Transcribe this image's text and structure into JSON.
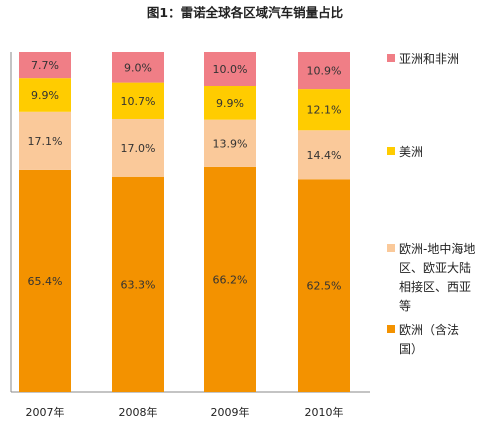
{
  "chart_data": {
    "type": "bar",
    "stacked": true,
    "title": "图1：雷诺全球各区域汽车销量占比",
    "categories": [
      "2007年",
      "2008年",
      "2009年",
      "2010年"
    ],
    "series": [
      {
        "name": "欧洲（含法国）",
        "color": "#F39200",
        "values": [
          65.4,
          63.3,
          66.2,
          62.5
        ],
        "labels": [
          "65.4%",
          "63.3%",
          "66.2%",
          "62.5%"
        ]
      },
      {
        "name": "欧洲-地中海地区、欧亚大陆相接区、西亚等",
        "color": "#FAC99A",
        "values": [
          17.1,
          17.0,
          13.9,
          14.4
        ],
        "labels": [
          "17.1%",
          "17.0%",
          "13.9%",
          "14.4%"
        ]
      },
      {
        "name": "美洲",
        "color": "#FFCC00",
        "values": [
          9.9,
          10.7,
          9.9,
          12.1
        ],
        "labels": [
          "9.9%",
          "10.7%",
          "9.9%",
          "12.1%"
        ]
      },
      {
        "name": "亚洲和非洲",
        "color": "#F07E86",
        "values": [
          7.7,
          9.0,
          10.0,
          10.9
        ],
        "labels": [
          "7.7%",
          "9.0%",
          "10.0%",
          "10.9%"
        ]
      }
    ],
    "legend": {
      "position": "right",
      "items": [
        {
          "lines": [
            "亚洲和非洲"
          ],
          "color": "#F07E86"
        },
        {
          "lines": [
            "美洲"
          ],
          "color": "#FFCC00"
        },
        {
          "lines": [
            "欧洲-地中海地",
            "区、欧亚大陆",
            "相接区、西亚",
            "等"
          ],
          "color": "#FAC99A"
        },
        {
          "lines": [
            "欧洲（含法",
            "国）"
          ],
          "color": "#F39200"
        }
      ]
    },
    "ylim": [
      0,
      100
    ],
    "grid": false
  }
}
